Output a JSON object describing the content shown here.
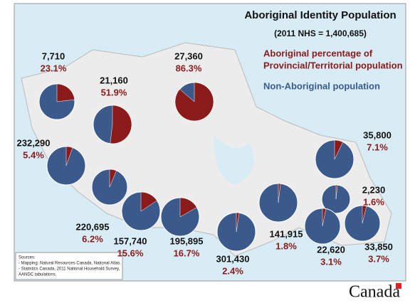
{
  "title": "Aboriginal Identity Population",
  "subtitle": "(2011 NHS = 1,400,685)",
  "legend": {
    "aboriginal": [
      "Aboriginal percentage of",
      "Provincial/Territorial population"
    ],
    "non_aboriginal": "Non-Aboriginal population"
  },
  "regions": [
    {
      "count": "7,710",
      "pct": 23.1,
      "pct_label": "23.1%"
    },
    {
      "count": "21,160",
      "pct": 51.9,
      "pct_label": "51.9%"
    },
    {
      "count": "27,360",
      "pct": 86.3,
      "pct_label": "86.3%"
    },
    {
      "count": "232,290",
      "pct": 5.4,
      "pct_label": "5.4%"
    },
    {
      "count": "220,695",
      "pct": 6.2,
      "pct_label": "6.2%"
    },
    {
      "count": "157,740",
      "pct": 15.6,
      "pct_label": "15.6%"
    },
    {
      "count": "195,895",
      "pct": 16.7,
      "pct_label": "16.7%"
    },
    {
      "count": "301,430",
      "pct": 2.4,
      "pct_label": "2.4%"
    },
    {
      "count": "141,915",
      "pct": 1.8,
      "pct_label": "1.8%"
    },
    {
      "count": "35,800",
      "pct": 7.1,
      "pct_label": "7.1%"
    },
    {
      "count": "2,230",
      "pct": 1.6,
      "pct_label": "1.6%"
    },
    {
      "count": "22,620",
      "pct": 3.1,
      "pct_label": "3.1%"
    },
    {
      "count": "33,850",
      "pct": 3.7,
      "pct_label": "3.7%"
    }
  ],
  "sources": [
    "Sources:",
    "- Mapping: Natural Resources Canada, National Atlas.",
    "- Statistics Canada, 2011 National Household Survey,",
    "AANDC tabulations."
  ],
  "wordmark": "Canada"
}
